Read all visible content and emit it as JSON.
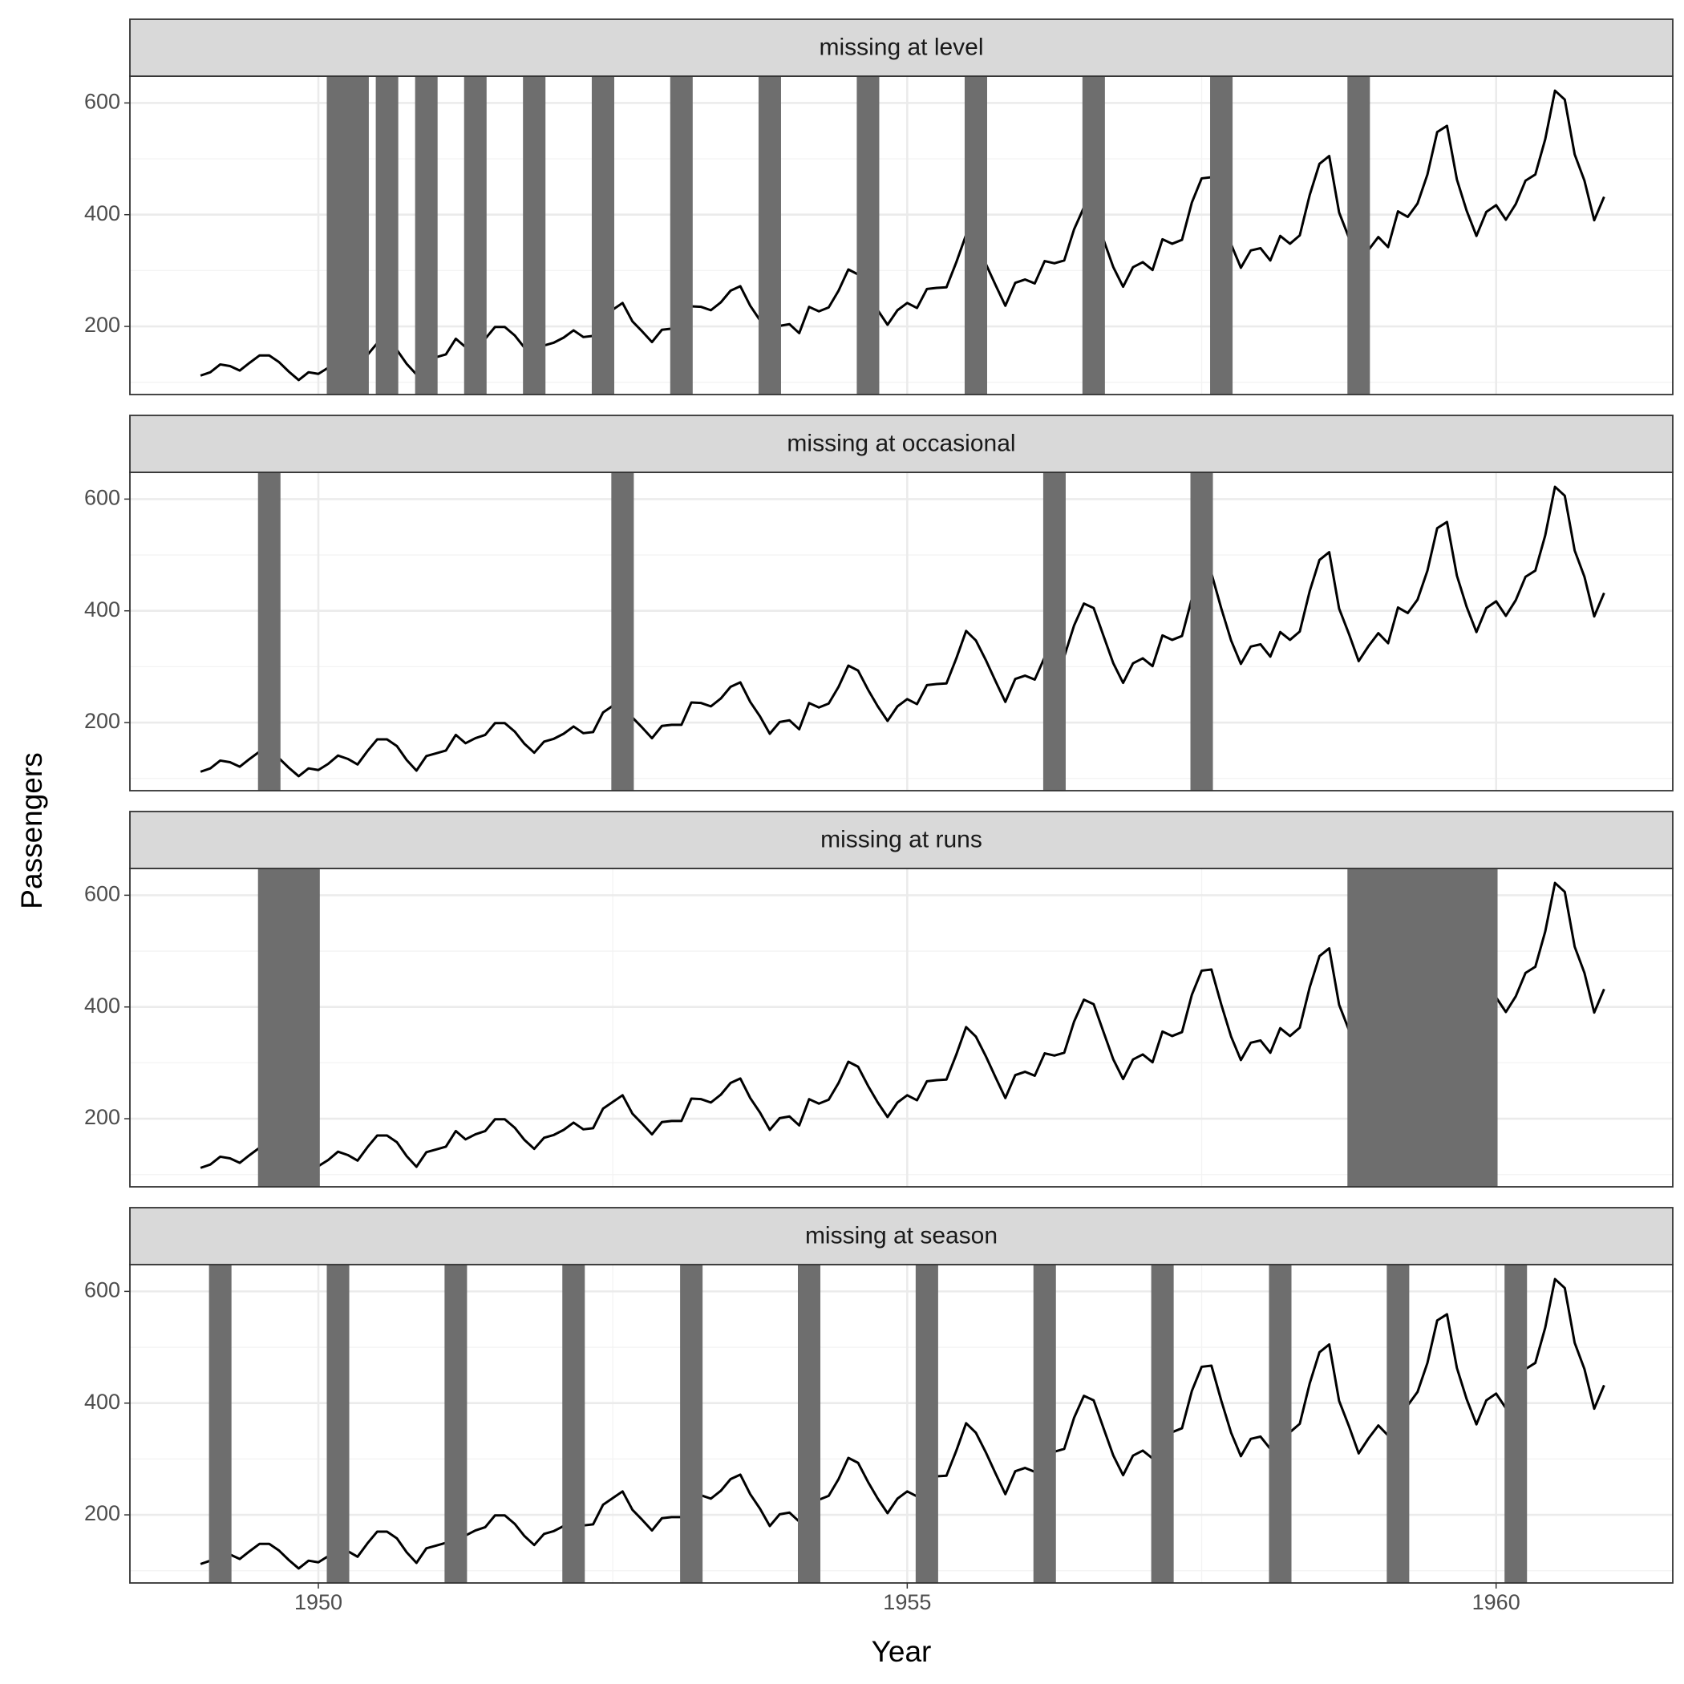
{
  "chart_data": {
    "type": "line",
    "xlabel": "Year",
    "ylabel": "Passengers",
    "line_color": "#000000",
    "band_color": "#6e6e6e",
    "grid": true,
    "x": [
      1949,
      1949.083,
      1949.167,
      1949.25,
      1949.333,
      1949.417,
      1949.5,
      1949.583,
      1949.667,
      1949.75,
      1949.833,
      1949.917,
      1950,
      1950.083,
      1950.167,
      1950.25,
      1950.333,
      1950.417,
      1950.5,
      1950.583,
      1950.667,
      1950.75,
      1950.833,
      1950.917,
      1951,
      1951.083,
      1951.167,
      1951.25,
      1951.333,
      1951.417,
      1951.5,
      1951.583,
      1951.667,
      1951.75,
      1951.833,
      1951.917,
      1952,
      1952.083,
      1952.167,
      1952.25,
      1952.333,
      1952.417,
      1952.5,
      1952.583,
      1952.667,
      1952.75,
      1952.833,
      1952.917,
      1953,
      1953.083,
      1953.167,
      1953.25,
      1953.333,
      1953.417,
      1953.5,
      1953.583,
      1953.667,
      1953.75,
      1953.833,
      1953.917,
      1954,
      1954.083,
      1954.167,
      1954.25,
      1954.333,
      1954.417,
      1954.5,
      1954.583,
      1954.667,
      1954.75,
      1954.833,
      1954.917,
      1955,
      1955.083,
      1955.167,
      1955.25,
      1955.333,
      1955.417,
      1955.5,
      1955.583,
      1955.667,
      1955.75,
      1955.833,
      1955.917,
      1956,
      1956.083,
      1956.167,
      1956.25,
      1956.333,
      1956.417,
      1956.5,
      1956.583,
      1956.667,
      1956.75,
      1956.833,
      1956.917,
      1957,
      1957.083,
      1957.167,
      1957.25,
      1957.333,
      1957.417,
      1957.5,
      1957.583,
      1957.667,
      1957.75,
      1957.833,
      1957.917,
      1958,
      1958.083,
      1958.167,
      1958.25,
      1958.333,
      1958.417,
      1958.5,
      1958.583,
      1958.667,
      1958.75,
      1958.833,
      1958.917,
      1959,
      1959.083,
      1959.167,
      1959.25,
      1959.333,
      1959.417,
      1959.5,
      1959.583,
      1959.667,
      1959.75,
      1959.833,
      1959.917,
      1960,
      1960.083,
      1960.167,
      1960.25,
      1960.333,
      1960.417,
      1960.5,
      1960.583,
      1960.667,
      1960.75,
      1960.833,
      1960.917
    ],
    "xlim": [
      1948.4,
      1961.5
    ],
    "xticks": [
      1950,
      1955,
      1960
    ],
    "xminor": [
      1952.5,
      1957.5
    ],
    "ylim": [
      78.1,
      647.9
    ],
    "yticks": [
      200,
      400,
      600
    ],
    "yminor": [
      100,
      300,
      500
    ],
    "panels": [
      {
        "title": "missing at level",
        "values": [
          112,
          118,
          132,
          129,
          121,
          135,
          148,
          148,
          136,
          119,
          104,
          118,
          115,
          126,
          null,
          null,
          null,
          149,
          170,
          null,
          158,
          133,
          114,
          null,
          145,
          150,
          178,
          163,
          null,
          178,
          199,
          199,
          184,
          162,
          null,
          166,
          171,
          180,
          193,
          181,
          183,
          null,
          230,
          242,
          209,
          191,
          172,
          194,
          196,
          null,
          236,
          235,
          229,
          243,
          264,
          272,
          237,
          211,
          null,
          201,
          204,
          188,
          235,
          227,
          234,
          264,
          302,
          293,
          null,
          229,
          203,
          229,
          242,
          233,
          267,
          269,
          270,
          315,
          364,
          null,
          312,
          274,
          237,
          278,
          284,
          277,
          317,
          313,
          318,
          374,
          413,
          null,
          355,
          306,
          271,
          306,
          315,
          301,
          356,
          348,
          355,
          422,
          465,
          467,
          null,
          347,
          305,
          336,
          340,
          318,
          362,
          348,
          363,
          435,
          491,
          505,
          404,
          359,
          null,
          337,
          360,
          342,
          406,
          396,
          420,
          472,
          548,
          559,
          463,
          407,
          362,
          405,
          417,
          391,
          419,
          461,
          472,
          535,
          622,
          606,
          508,
          461,
          390,
          432
        ]
      },
      {
        "title": "missing at occasional",
        "values": [
          112,
          118,
          132,
          129,
          121,
          135,
          148,
          null,
          136,
          119,
          104,
          118,
          115,
          126,
          141,
          135,
          125,
          149,
          170,
          170,
          158,
          133,
          114,
          140,
          145,
          150,
          178,
          163,
          172,
          178,
          199,
          199,
          184,
          162,
          146,
          166,
          171,
          180,
          193,
          181,
          183,
          218,
          230,
          null,
          209,
          191,
          172,
          194,
          196,
          196,
          236,
          235,
          229,
          243,
          264,
          272,
          237,
          211,
          180,
          201,
          204,
          188,
          235,
          227,
          234,
          264,
          302,
          293,
          259,
          229,
          203,
          229,
          242,
          233,
          267,
          269,
          270,
          315,
          364,
          347,
          312,
          274,
          237,
          278,
          284,
          277,
          317,
          null,
          318,
          374,
          413,
          405,
          355,
          306,
          271,
          306,
          315,
          301,
          356,
          348,
          355,
          422,
          null,
          467,
          404,
          347,
          305,
          336,
          340,
          318,
          362,
          348,
          363,
          435,
          491,
          505,
          404,
          359,
          310,
          337,
          360,
          342,
          406,
          396,
          420,
          472,
          548,
          559,
          463,
          407,
          362,
          405,
          417,
          391,
          419,
          461,
          472,
          535,
          622,
          606,
          508,
          461,
          390,
          432
        ]
      },
      {
        "title": "missing at runs",
        "values": [
          112,
          118,
          132,
          129,
          121,
          135,
          148,
          null,
          null,
          null,
          null,
          null,
          115,
          126,
          141,
          135,
          125,
          149,
          170,
          170,
          158,
          133,
          114,
          140,
          145,
          150,
          178,
          163,
          172,
          178,
          199,
          199,
          184,
          162,
          146,
          166,
          171,
          180,
          193,
          181,
          183,
          218,
          230,
          242,
          209,
          191,
          172,
          194,
          196,
          196,
          236,
          235,
          229,
          243,
          264,
          272,
          237,
          211,
          180,
          201,
          204,
          188,
          235,
          227,
          234,
          264,
          302,
          293,
          259,
          229,
          203,
          229,
          242,
          233,
          267,
          269,
          270,
          315,
          364,
          347,
          312,
          274,
          237,
          278,
          284,
          277,
          317,
          313,
          318,
          374,
          413,
          405,
          355,
          306,
          271,
          306,
          315,
          301,
          356,
          348,
          355,
          422,
          465,
          467,
          404,
          347,
          305,
          336,
          340,
          318,
          362,
          348,
          363,
          435,
          491,
          505,
          404,
          359,
          null,
          null,
          null,
          null,
          null,
          null,
          null,
          null,
          null,
          null,
          null,
          null,
          null,
          null,
          417,
          391,
          419,
          461,
          472,
          535,
          622,
          606,
          508,
          461,
          390,
          432
        ]
      },
      {
        "title": "missing at season",
        "values": [
          112,
          118,
          null,
          129,
          121,
          135,
          148,
          148,
          136,
          119,
          104,
          118,
          115,
          126,
          null,
          135,
          125,
          149,
          170,
          170,
          158,
          133,
          114,
          140,
          145,
          150,
          null,
          163,
          172,
          178,
          199,
          199,
          184,
          162,
          146,
          166,
          171,
          180,
          null,
          181,
          183,
          218,
          230,
          242,
          209,
          191,
          172,
          194,
          196,
          196,
          null,
          235,
          229,
          243,
          264,
          272,
          237,
          211,
          180,
          201,
          204,
          188,
          null,
          227,
          234,
          264,
          302,
          293,
          259,
          229,
          203,
          229,
          242,
          233,
          null,
          269,
          270,
          315,
          364,
          347,
          312,
          274,
          237,
          278,
          284,
          277,
          null,
          313,
          318,
          374,
          413,
          405,
          355,
          306,
          271,
          306,
          315,
          301,
          null,
          348,
          355,
          422,
          465,
          467,
          404,
          347,
          305,
          336,
          340,
          318,
          null,
          348,
          363,
          435,
          491,
          505,
          404,
          359,
          310,
          337,
          360,
          342,
          null,
          396,
          420,
          472,
          548,
          559,
          463,
          407,
          362,
          405,
          417,
          391,
          null,
          461,
          472,
          535,
          622,
          606,
          508,
          461,
          390,
          432
        ]
      }
    ]
  }
}
